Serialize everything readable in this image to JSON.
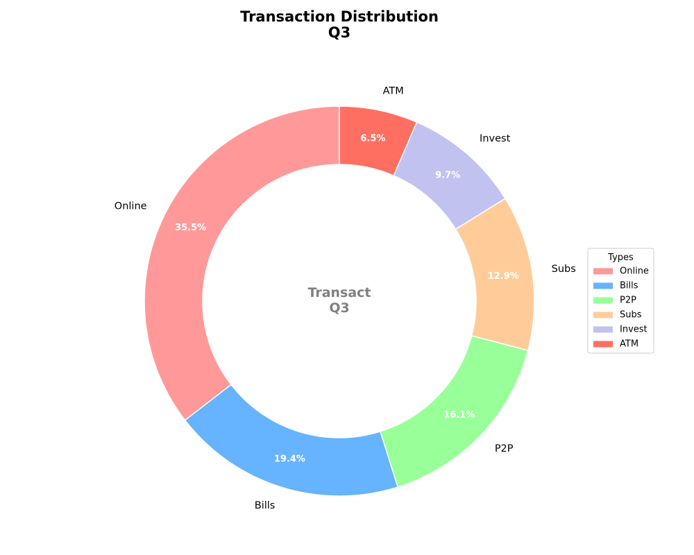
{
  "chart_data": {
    "type": "pie",
    "title": "Transaction Distribution",
    "subtitle": "Q3",
    "center_label_line1": "Transact",
    "center_label_line2": "Q3",
    "donut": true,
    "start_angle_deg": 90,
    "direction": "counterclockwise",
    "categories": [
      "Online",
      "Bills",
      "P2P",
      "Subs",
      "Invest",
      "ATM"
    ],
    "values": [
      35.5,
      19.4,
      16.1,
      12.9,
      9.7,
      6.5
    ],
    "pct_labels": [
      "35.5%",
      "19.4%",
      "16.1%",
      "12.9%",
      "9.7%",
      "6.5%"
    ],
    "colors": [
      "#ff9999",
      "#66b3ff",
      "#99ff99",
      "#ffcc99",
      "#c2c2f0",
      "#ff6f61"
    ],
    "legend": {
      "title": "Types",
      "placement": "right",
      "entries": [
        "Online",
        "Bills",
        "P2P",
        "Subs",
        "Invest",
        "ATM"
      ]
    }
  }
}
